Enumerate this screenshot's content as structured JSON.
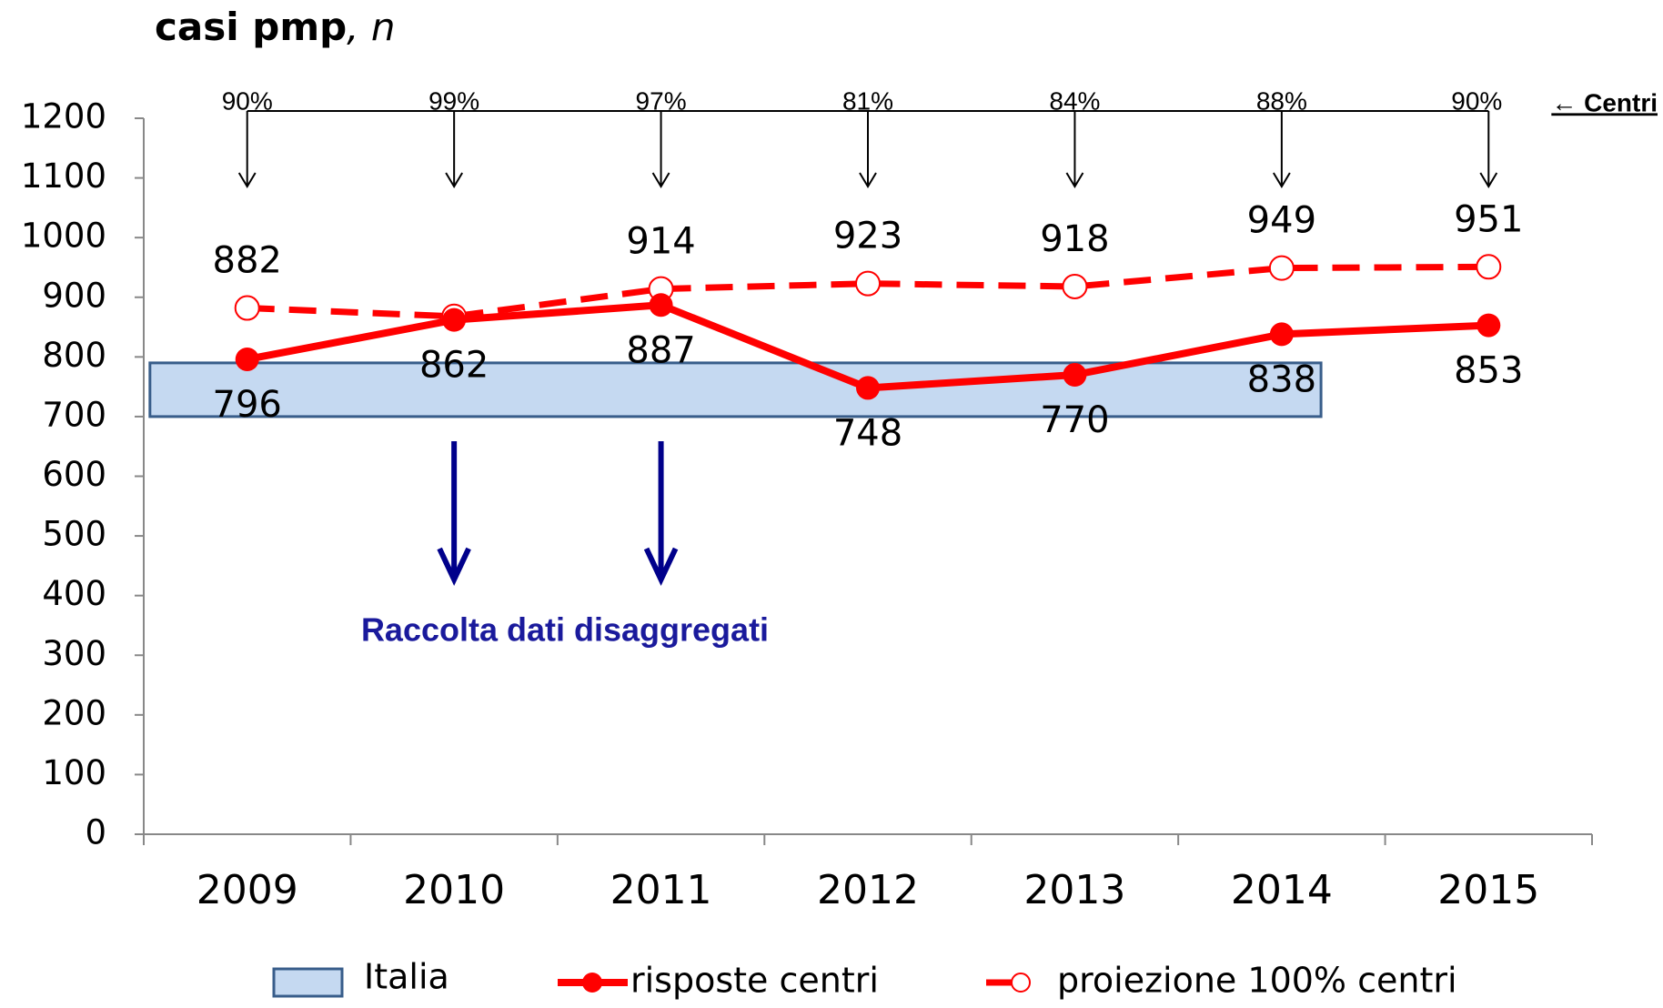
{
  "chart_data": {
    "type": "line",
    "title": "casi pmp",
    "title_suffix": ", n",
    "categories": [
      "2009",
      "2010",
      "2011",
      "2012",
      "2013",
      "2014",
      "2015"
    ],
    "series": [
      {
        "name": "risposte centri",
        "color": "#ff0000",
        "style": "solid",
        "values": [
          796,
          862,
          887,
          748,
          770,
          838,
          853
        ]
      },
      {
        "name": "proiezione 100% centri",
        "color": "#ff0000",
        "style": "dashed",
        "values": [
          882,
          868,
          914,
          923,
          918,
          949,
          951
        ],
        "value_labels": [
          "882",
          null,
          "914",
          "923",
          "918",
          "949",
          "951"
        ]
      }
    ],
    "band": {
      "name": "Italia",
      "range": [
        700,
        790
      ],
      "color": "#c5d9f1",
      "edge": "#385d8a"
    },
    "centri": {
      "label": "← Centri",
      "values": [
        90,
        99,
        97,
        81,
        84,
        88,
        90
      ],
      "value_labels": [
        "90%",
        "99%",
        "97%",
        "81%",
        "84%",
        "88%",
        "90%"
      ]
    },
    "annotation": "Raccolta dati disaggregati",
    "ylim": [
      0,
      1200
    ],
    "yticks": [
      0,
      100,
      200,
      300,
      400,
      500,
      600,
      700,
      800,
      900,
      1000,
      1100,
      1200
    ]
  }
}
